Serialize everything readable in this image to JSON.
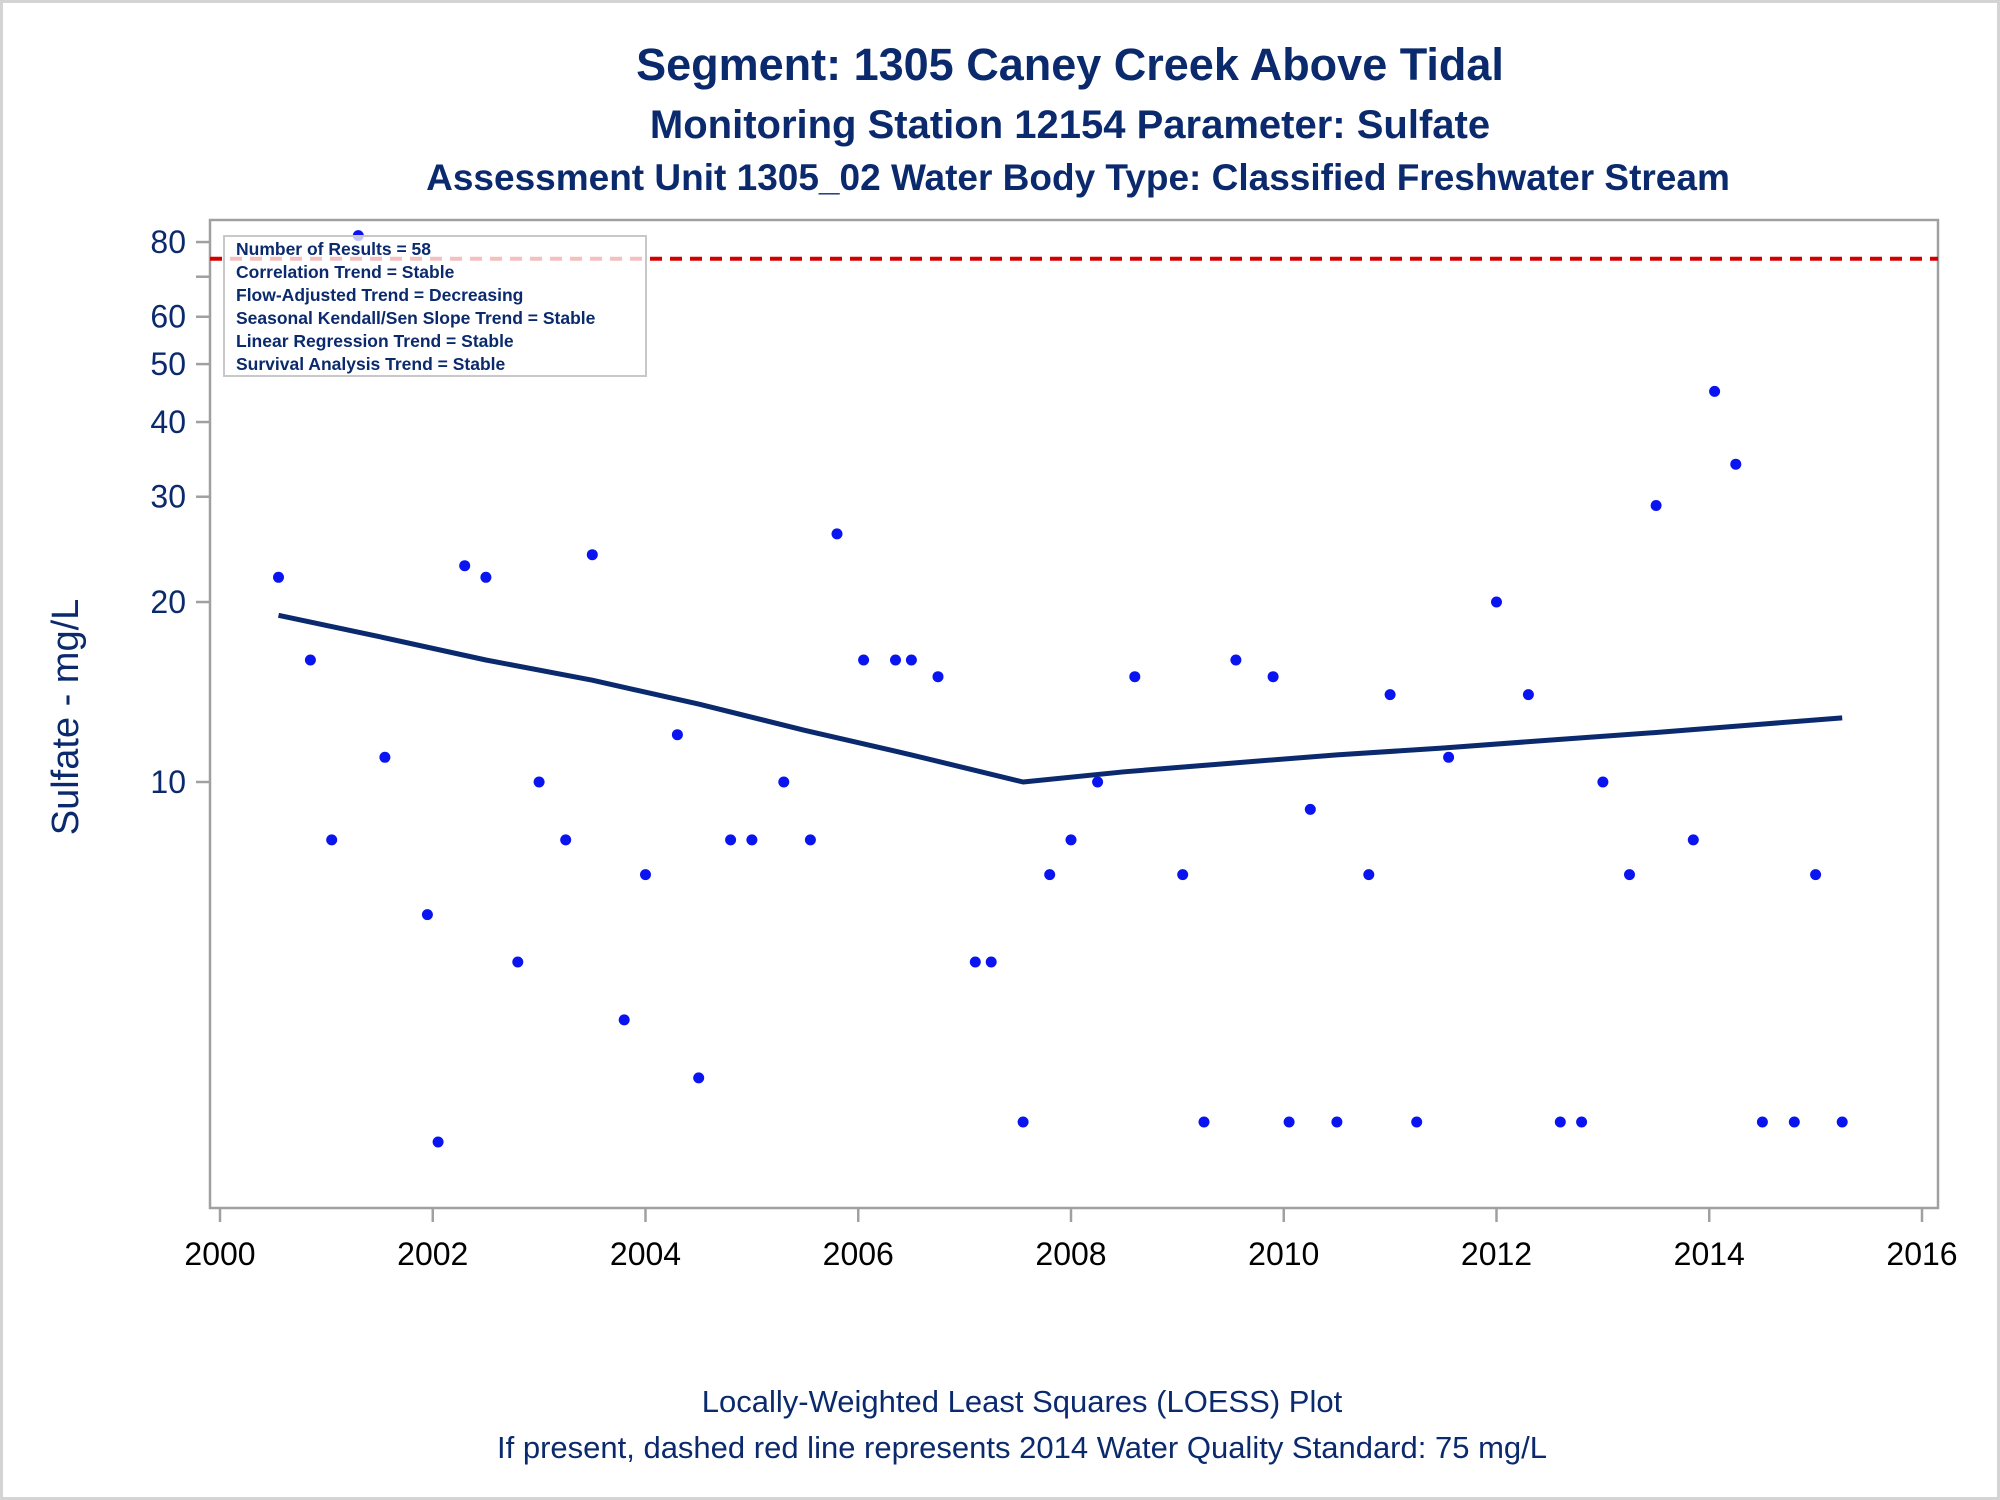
{
  "titles": {
    "line1": "Segment: 1305  Caney Creek Above Tidal",
    "line2": "Monitoring Station 12154 Parameter: Sulfate",
    "line3": "Assessment Unit 1305_02   Water Body Type: Classified Freshwater Stream"
  },
  "inset": [
    "Number of Results = 58",
    "Correlation Trend = Stable",
    "Flow-Adjusted Trend = Decreasing",
    "Seasonal Kendall/Sen Slope Trend = Stable",
    "Linear Regression Trend = Stable",
    "Survival Analysis Trend = Stable"
  ],
  "footnotes": {
    "line1": "Locally-Weighted Least Squares (LOESS) Plot",
    "line2": "If present, dashed red line represents 2014 Water Quality Standard: 75    mg/L"
  },
  "colors": {
    "points": "#0a14f0",
    "loess": "#0b2a6e",
    "standard": "#d40000",
    "axis": "#a0a0a0",
    "text": "#0b2a6e"
  },
  "chart_data": {
    "type": "scatter",
    "ylabel": "Sulfate - mg/L",
    "xlabel": "",
    "y_scale": "log",
    "xlim": [
      2000,
      2016
    ],
    "ylim": [
      2.5,
      90
    ],
    "x_ticks": [
      "2000",
      "2002",
      "2004",
      "2006",
      "2008",
      "2010",
      "2012",
      "2014",
      "2016"
    ],
    "y_ticks": [
      "10",
      "20",
      "30",
      "40",
      "50",
      "60",
      "80"
    ],
    "grid": false,
    "standard_line": {
      "value": 75,
      "unit": "mg/L",
      "style": "dashed",
      "color": "#d40000"
    },
    "points": [
      [
        2000.55,
        22
      ],
      [
        2000.85,
        16
      ],
      [
        2001.05,
        8
      ],
      [
        2001.55,
        11
      ],
      [
        2001.95,
        6
      ],
      [
        2002.05,
        2.5
      ],
      [
        2002.3,
        23
      ],
      [
        2002.5,
        22
      ],
      [
        2002.8,
        5
      ],
      [
        2003.0,
        10
      ],
      [
        2003.25,
        8
      ],
      [
        2003.5,
        24
      ],
      [
        2003.8,
        4
      ],
      [
        2004.0,
        7
      ],
      [
        2004.3,
        12
      ],
      [
        2004.5,
        3.2
      ],
      [
        2004.8,
        8
      ],
      [
        2005.0,
        8
      ],
      [
        2005.3,
        10
      ],
      [
        2005.55,
        8
      ],
      [
        2005.8,
        26
      ],
      [
        2006.05,
        16
      ],
      [
        2006.35,
        16
      ],
      [
        2006.5,
        16
      ],
      [
        2006.75,
        15
      ],
      [
        2007.1,
        5
      ],
      [
        2007.25,
        5
      ],
      [
        2007.55,
        2.7
      ],
      [
        2007.8,
        7
      ],
      [
        2008.0,
        8
      ],
      [
        2008.25,
        10
      ],
      [
        2008.6,
        15
      ],
      [
        2009.05,
        7
      ],
      [
        2009.25,
        2.7
      ],
      [
        2009.55,
        16
      ],
      [
        2009.9,
        15
      ],
      [
        2010.05,
        2.7
      ],
      [
        2010.25,
        9
      ],
      [
        2010.5,
        2.7
      ],
      [
        2010.8,
        7
      ],
      [
        2011.0,
        14
      ],
      [
        2011.25,
        2.7
      ],
      [
        2011.55,
        11
      ],
      [
        2012.0,
        20
      ],
      [
        2012.3,
        14
      ],
      [
        2012.6,
        2.7
      ],
      [
        2012.8,
        2.7
      ],
      [
        2013.0,
        10
      ],
      [
        2013.25,
        7
      ],
      [
        2013.5,
        29
      ],
      [
        2013.85,
        8
      ],
      [
        2014.05,
        45
      ],
      [
        2014.25,
        34
      ],
      [
        2014.5,
        2.7
      ],
      [
        2014.8,
        2.7
      ],
      [
        2015.0,
        7
      ],
      [
        2015.25,
        2.7
      ],
      [
        2001.3,
        82
      ]
    ],
    "loess": [
      [
        2000.55,
        19
      ],
      [
        2001.5,
        17.5
      ],
      [
        2002.5,
        16
      ],
      [
        2003.5,
        14.8
      ],
      [
        2004.5,
        13.5
      ],
      [
        2005.5,
        12.2
      ],
      [
        2006.5,
        11.1
      ],
      [
        2007.55,
        10.0
      ],
      [
        2008.5,
        10.4
      ],
      [
        2009.5,
        10.75
      ],
      [
        2010.5,
        11.1
      ],
      [
        2011.5,
        11.4
      ],
      [
        2012.5,
        11.75
      ],
      [
        2013.5,
        12.1
      ],
      [
        2014.5,
        12.5
      ],
      [
        2015.25,
        12.8
      ]
    ]
  }
}
